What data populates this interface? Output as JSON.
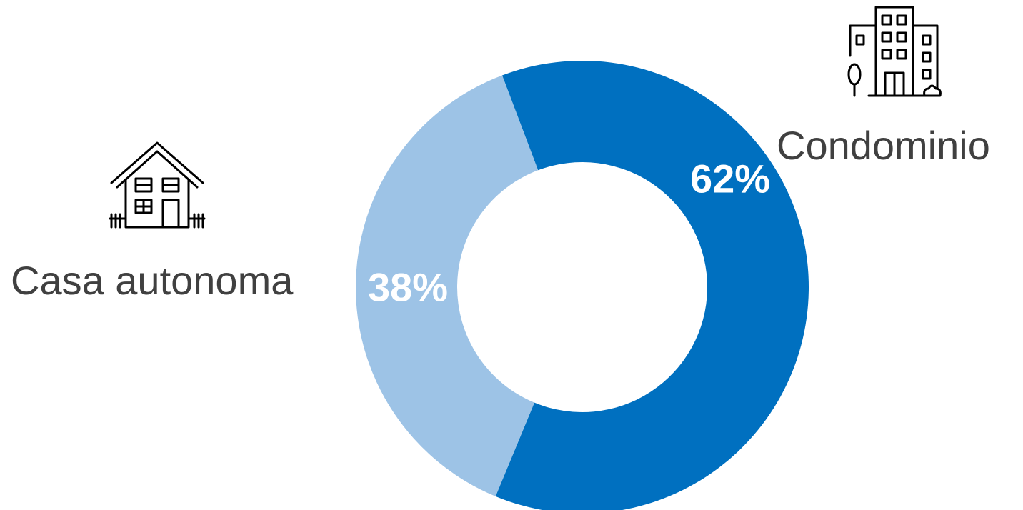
{
  "chart_data": {
    "type": "pie",
    "donut": true,
    "slices": [
      {
        "name": "Condominio",
        "value": 62,
        "label": "62%",
        "color": "#0070C0",
        "icon": "apartment-building-icon"
      },
      {
        "name": "Casa autonoma",
        "value": 38,
        "label": "38%",
        "color": "#9DC3E6",
        "icon": "house-icon"
      }
    ],
    "title": "",
    "legend": "none"
  },
  "colors": {
    "background": "#FFFFFF",
    "label_text": "#404040",
    "data_label_text": "#FFFFFF",
    "icon_stroke": "#000000"
  }
}
